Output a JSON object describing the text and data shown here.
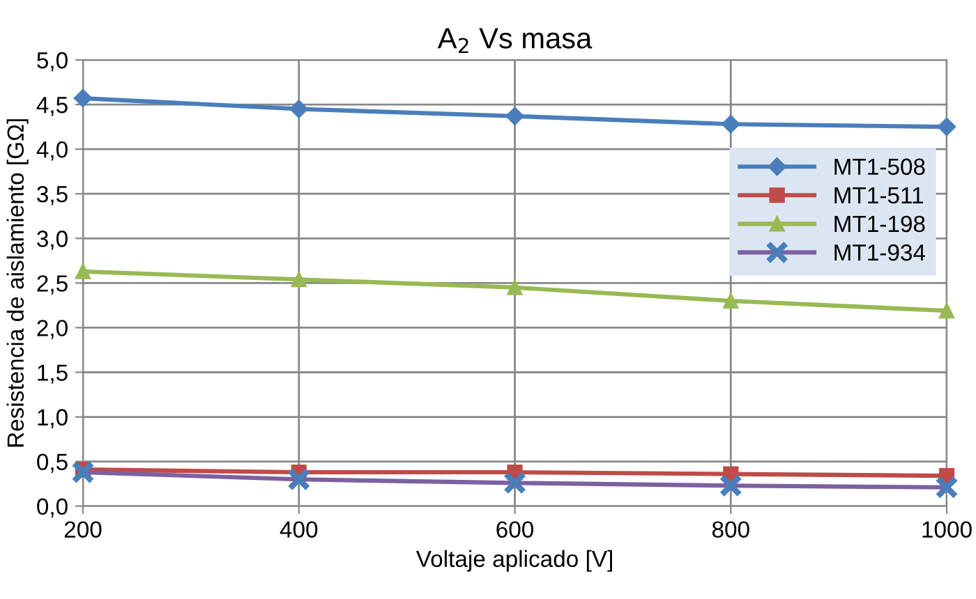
{
  "chart_data": {
    "type": "line",
    "title": "A$_{2}$ Vs masa",
    "xlabel": "Voltaje aplicado [V]",
    "ylabel": "Resistencia de aislamiento [GΩ]",
    "x": [
      200,
      400,
      600,
      800,
      1000
    ],
    "series": [
      {
        "name": "MT1-508",
        "color": "#4a7ebb",
        "marker": "diamond",
        "values": [
          4.57,
          4.45,
          4.37,
          4.28,
          4.25
        ]
      },
      {
        "name": "MT1-511",
        "color": "#be4b48",
        "marker": "square",
        "values": [
          0.41,
          0.38,
          0.38,
          0.36,
          0.34
        ]
      },
      {
        "name": "MT1-198",
        "color": "#98b954",
        "marker": "triangle",
        "values": [
          2.63,
          2.54,
          2.45,
          2.3,
          2.19
        ]
      },
      {
        "name": "MT1-934",
        "color": "#7d60a0",
        "marker": "cross",
        "values": [
          0.38,
          0.3,
          0.26,
          0.23,
          0.21
        ]
      }
    ],
    "xlim": [
      200,
      1000
    ],
    "xticks": [
      200,
      400,
      600,
      800,
      1000
    ],
    "ylim": [
      0,
      5
    ],
    "yticks": [
      {
        "value": 0,
        "label": "0,0"
      },
      {
        "value": 0.5,
        "label": "0,5"
      },
      {
        "value": 1,
        "label": "1,0"
      },
      {
        "value": 1.5,
        "label": "1,5"
      },
      {
        "value": 2,
        "label": "2,0"
      },
      {
        "value": 2.5,
        "label": "2,5"
      },
      {
        "value": 3,
        "label": "3,0"
      },
      {
        "value": 3.5,
        "label": "3,5"
      },
      {
        "value": 4,
        "label": "4,0"
      },
      {
        "value": 4.5,
        "label": "4,5"
      },
      {
        "value": 5,
        "label": "5,0"
      }
    ],
    "grid": true,
    "legend": "right",
    "line_style": "solid"
  }
}
